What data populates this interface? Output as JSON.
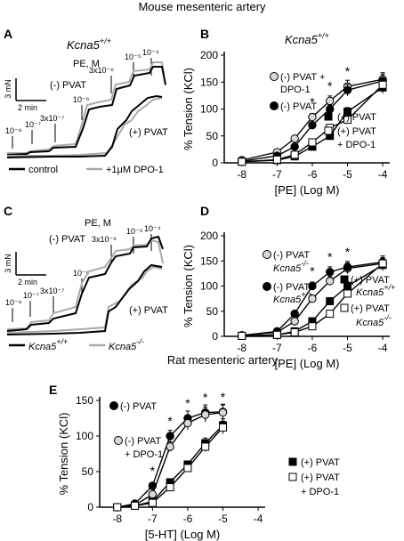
{
  "figure": {
    "header_top": "Mouse mesenteric artery",
    "header_bottom": "Rat mesenteric artery"
  },
  "colors": {
    "black": "#000000",
    "gray": "#aaaaaa",
    "light_fill": "#d9d9d9",
    "dpo_fill": "#ffffff"
  },
  "traces": [
    {
      "panel": "A",
      "genotype": "Kcna5",
      "genotype_sup": "+/+",
      "agonist_label": "PE, M",
      "concentrations": [
        "10⁻⁸",
        "10⁻⁷",
        "3x10⁻⁷",
        "10⁻⁶",
        "3x10⁻⁶",
        "10⁻⁵",
        "10⁻⁴"
      ],
      "condition_minus": "(-) PVAT",
      "condition_plus": "(+) PVAT",
      "scale_force": "3 mN",
      "scale_time": "2 min",
      "legend": [
        "control",
        "+1μM DPO-1"
      ]
    },
    {
      "panel": "C",
      "agonist_label": "PE, M",
      "concentrations": [
        "10⁻⁸",
        "10⁻⁷",
        "3x10⁻⁷",
        "10⁻⁶",
        "3x10⁻⁶",
        "10⁻⁵",
        "10⁻⁴"
      ],
      "condition_minus": "(-) PVAT",
      "condition_plus": "(+) PVAT",
      "scale_force": "3 mN",
      "scale_time": "2 min",
      "legend": [
        {
          "base": "Kcna5",
          "sup": "+/+"
        },
        {
          "base": "Kcna5",
          "sup": "-/-"
        }
      ]
    }
  ],
  "chart_data": [
    {
      "panel": "B",
      "type": "line",
      "title": "Kcna5",
      "title_sup": "+/+",
      "xlabel": "[PE] (Log M)",
      "ylabel": "% Tension (KCl)",
      "xlim": [
        -8.5,
        -3.8
      ],
      "ylim": [
        0,
        200
      ],
      "xticks": [
        -8,
        -7,
        -6,
        -5,
        -4
      ],
      "yticks": [
        0,
        50,
        100,
        150,
        200
      ],
      "x": [
        -8,
        -7,
        -6.5,
        -6,
        -5.5,
        -5,
        -4
      ],
      "significance_x": [
        -6,
        -5.5,
        -5
      ],
      "series": [
        {
          "name": "(-) PVAT + DPO-1",
          "marker": "circle",
          "fill": "#d9d9d9",
          "values": [
            5,
            20,
            45,
            85,
            115,
            142,
            155
          ]
        },
        {
          "name": "(-) PVAT",
          "marker": "circle",
          "fill": "#000000",
          "values": [
            3,
            13,
            30,
            70,
            100,
            135,
            152
          ]
        },
        {
          "name": "(+) PVAT",
          "marker": "square",
          "fill": "#000000",
          "values": [
            2,
            5,
            12,
            30,
            50,
            95,
            140
          ]
        },
        {
          "name": "(+) PVAT + DPO-1",
          "marker": "square",
          "fill": "#ffffff",
          "values": [
            2,
            6,
            15,
            38,
            65,
            80,
            145
          ]
        }
      ]
    },
    {
      "panel": "D",
      "type": "line",
      "xlabel": "[PE] (Log M)",
      "ylabel": "% Tension (KCl)",
      "xlim": [
        -8.5,
        -3.8
      ],
      "ylim": [
        0,
        200
      ],
      "xticks": [
        -8,
        -7,
        -6,
        -5,
        -4
      ],
      "yticks": [
        0,
        50,
        100,
        150,
        200
      ],
      "x": [
        -8,
        -7,
        -6.5,
        -6,
        -5.5,
        -5,
        -4
      ],
      "significance_x": [
        -6,
        -5.5,
        -5
      ],
      "series": [
        {
          "name": "(-) PVAT Kcna5-/-",
          "label_main": "(-) PVAT",
          "label_base": "Kcna5",
          "label_sup": "-/-",
          "marker": "circle",
          "fill": "#d9d9d9",
          "values": [
            2,
            8,
            30,
            75,
            110,
            135,
            145
          ]
        },
        {
          "name": "(-) PVAT Kcna5+/+",
          "label_main": "(-) PVAT",
          "label_base": "Kcna5",
          "label_sup": "+/+",
          "marker": "circle",
          "fill": "#000000",
          "values": [
            2,
            10,
            45,
            100,
            128,
            138,
            148
          ]
        },
        {
          "name": "(+) PVAT Kcna5+/+",
          "label_main": "(+) PVAT",
          "label_base": "Kcna5",
          "label_sup": "+/+",
          "marker": "square",
          "fill": "#000000",
          "values": [
            1,
            3,
            10,
            30,
            70,
            100,
            142
          ]
        },
        {
          "name": "(+) PVAT Kcna5-/-",
          "label_main": "(+) PVAT",
          "label_base": "Kcna5",
          "label_sup": "-/-",
          "marker": "square",
          "fill": "#ffffff",
          "values": [
            1,
            3,
            8,
            20,
            45,
            85,
            145
          ]
        }
      ]
    },
    {
      "panel": "E",
      "type": "line",
      "xlabel": "[5-HT] (Log M)",
      "ylabel": "% Tension (KCl)",
      "xlim": [
        -8.5,
        -3.8
      ],
      "ylim": [
        0,
        150
      ],
      "xticks": [
        -8,
        -7,
        -6,
        -5,
        -4
      ],
      "yticks": [
        0,
        50,
        100,
        150
      ],
      "x": [
        -8,
        -7.5,
        -7,
        -6.5,
        -6,
        -5.5,
        -5
      ],
      "significance_x": [
        -7,
        -6.5,
        -6,
        -5.5,
        -5
      ],
      "series": [
        {
          "name": "(-) PVAT",
          "marker": "circle",
          "fill": "#000000",
          "values": [
            0,
            5,
            30,
            100,
            125,
            133,
            134
          ]
        },
        {
          "name": "(-) PVAT + DPO-1",
          "marker": "circle",
          "fill": "#d9d9d9",
          "values": [
            0,
            3,
            18,
            85,
            118,
            130,
            133
          ]
        },
        {
          "name": "(+) PVAT",
          "marker": "square",
          "fill": "#000000",
          "values": [
            0,
            2,
            8,
            35,
            60,
            90,
            115
          ]
        },
        {
          "name": "(+) PVAT + DPO-1",
          "marker": "square",
          "fill": "#ffffff",
          "values": [
            0,
            2,
            6,
            28,
            55,
            85,
            112
          ]
        }
      ]
    }
  ]
}
